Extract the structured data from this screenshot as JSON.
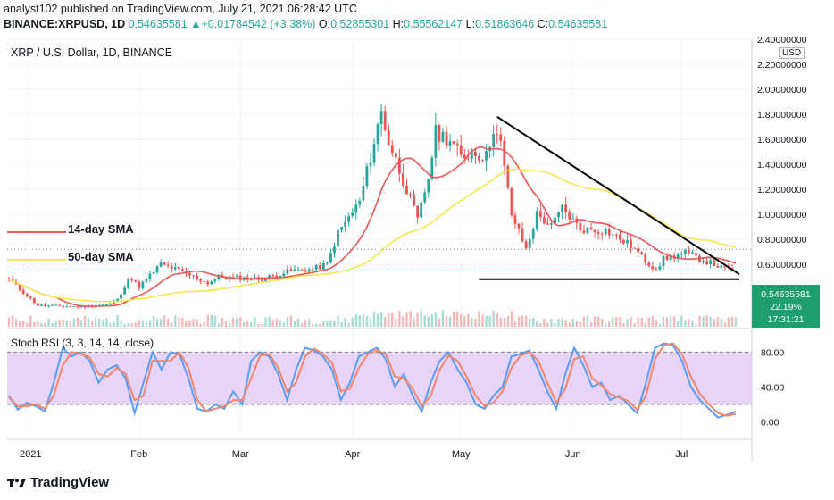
{
  "header": {
    "line1": "analyst102 published on TradingView.com, July 21, 2021 06:28:42 UTC",
    "symbol": "BINANCE:XRPUSD, 1D",
    "last": "0.54635581",
    "change": "+0.01784542 (+3.38%)",
    "o_label": "O:",
    "o": "0.52855301",
    "h_label": "H:",
    "h": "0.55562147",
    "l_label": "L:",
    "l": "0.51863646",
    "c_label": "C:",
    "c": "0.54635581"
  },
  "legend_title": "XRP / U.S. Dollar, 1D, BINANCE",
  "currency": "USD",
  "price_badge": {
    "price": "0.54635581",
    "pct": "22.19%",
    "countdown": "17:31:21"
  },
  "rsi_title": "Stoch RSI (3, 3, 14, 14, close)",
  "sma_labels": {
    "sma14": "14-day SMA",
    "sma50": "50-day SMA"
  },
  "footer": {
    "brand": "TradingView"
  },
  "colors": {
    "up": "#26a69a",
    "down": "#ef5350",
    "sma14": "#f05454",
    "sma50": "#f5e74e",
    "rsi_k": "#5b9cf6",
    "rsi_d": "#f0866a",
    "rsi_band": "#e1c6f7",
    "badge": "#1f9e6e"
  },
  "chart_data": [
    {
      "type": "candlestick",
      "title": "XRP / U.S. Dollar, 1D, BINANCE",
      "y_ticks": [
        "2.40000000",
        "2.20000000",
        "2.00000000",
        "1.80000000",
        "1.60000000",
        "1.40000000",
        "1.20000000",
        "1.00000000",
        "0.80000000",
        "0.60000000"
      ],
      "ylim": [
        0.1,
        2.4
      ],
      "x_ticks": [
        "2021",
        "Feb",
        "Mar",
        "Apr",
        "May",
        "Jun",
        "Jul"
      ],
      "anchors": [
        [
          0,
          0.48
        ],
        [
          8,
          0.27
        ],
        [
          20,
          0.26
        ],
        [
          28,
          0.28
        ],
        [
          31,
          0.35
        ],
        [
          33,
          0.5
        ],
        [
          36,
          0.42
        ],
        [
          42,
          0.6
        ],
        [
          47,
          0.55
        ],
        [
          55,
          0.45
        ],
        [
          58,
          0.5
        ],
        [
          70,
          0.48
        ],
        [
          78,
          0.55
        ],
        [
          84,
          0.56
        ],
        [
          88,
          0.6
        ],
        [
          91,
          0.85
        ],
        [
          97,
          1.1
        ],
        [
          102,
          1.7
        ],
        [
          103,
          1.82
        ],
        [
          105,
          1.58
        ],
        [
          110,
          1.2
        ],
        [
          113,
          0.95
        ],
        [
          116,
          1.3
        ],
        [
          118,
          1.65
        ],
        [
          122,
          1.6
        ],
        [
          125,
          1.45
        ],
        [
          128,
          1.5
        ],
        [
          132,
          1.46
        ],
        [
          134,
          1.7
        ],
        [
          136,
          1.55
        ],
        [
          139,
          1.0
        ],
        [
          143,
          0.72
        ],
        [
          146,
          1.0
        ],
        [
          150,
          0.9
        ],
        [
          153,
          1.05
        ],
        [
          158,
          0.88
        ],
        [
          165,
          0.87
        ],
        [
          172,
          0.75
        ],
        [
          177,
          0.6
        ],
        [
          179,
          0.57
        ],
        [
          181,
          0.64
        ],
        [
          187,
          0.69
        ],
        [
          195,
          0.6
        ],
        [
          197,
          0.57
        ],
        [
          201,
          0.55
        ]
      ],
      "series": [
        {
          "name": "14-day SMA",
          "period": 14
        },
        {
          "name": "50-day SMA",
          "period": 50
        }
      ],
      "trendline_start_date_index": 135,
      "support_level": 0.48
    },
    {
      "type": "line",
      "title": "Stoch RSI (3, 3, 14, 14, close)",
      "y_ticks": [
        "80.00",
        "40.00",
        "0.00"
      ],
      "ylim": [
        -20,
        105
      ],
      "bands": [
        20,
        80
      ],
      "series": [
        {
          "values": [
            30,
            14,
            22,
            18,
            12,
            45,
            85,
            75,
            80,
            70,
            45,
            60,
            65,
            50,
            10,
            45,
            80,
            60,
            80,
            78,
            50,
            15,
            12,
            20,
            15,
            35,
            20,
            70,
            80,
            75,
            55,
            25,
            60,
            85,
            82,
            75,
            60,
            25,
            45,
            75,
            80,
            85,
            72,
            40,
            55,
            30,
            12,
            45,
            70,
            80,
            60,
            45,
            20,
            15,
            30,
            40,
            75,
            78,
            82,
            60,
            35,
            15,
            55,
            85,
            65,
            40,
            45,
            25,
            30,
            20,
            10,
            45,
            85,
            90,
            88,
            70,
            40,
            25,
            15,
            5,
            8,
            12
          ]
        },
        {
          "values": [
            28,
            18,
            18,
            20,
            15,
            30,
            65,
            80,
            78,
            74,
            55,
            52,
            62,
            55,
            25,
            30,
            70,
            70,
            70,
            80,
            62,
            25,
            12,
            15,
            18,
            25,
            25,
            50,
            76,
            78,
            62,
            35,
            45,
            75,
            84,
            78,
            68,
            35,
            38,
            62,
            78,
            82,
            78,
            52,
            50,
            38,
            18,
            30,
            60,
            76,
            70,
            52,
            30,
            18,
            22,
            35,
            62,
            76,
            80,
            70,
            45,
            22,
            38,
            72,
            75,
            50,
            42,
            32,
            28,
            24,
            14,
            30,
            72,
            88,
            90,
            78,
            52,
            32,
            20,
            10,
            7,
            9
          ]
        }
      ]
    }
  ]
}
